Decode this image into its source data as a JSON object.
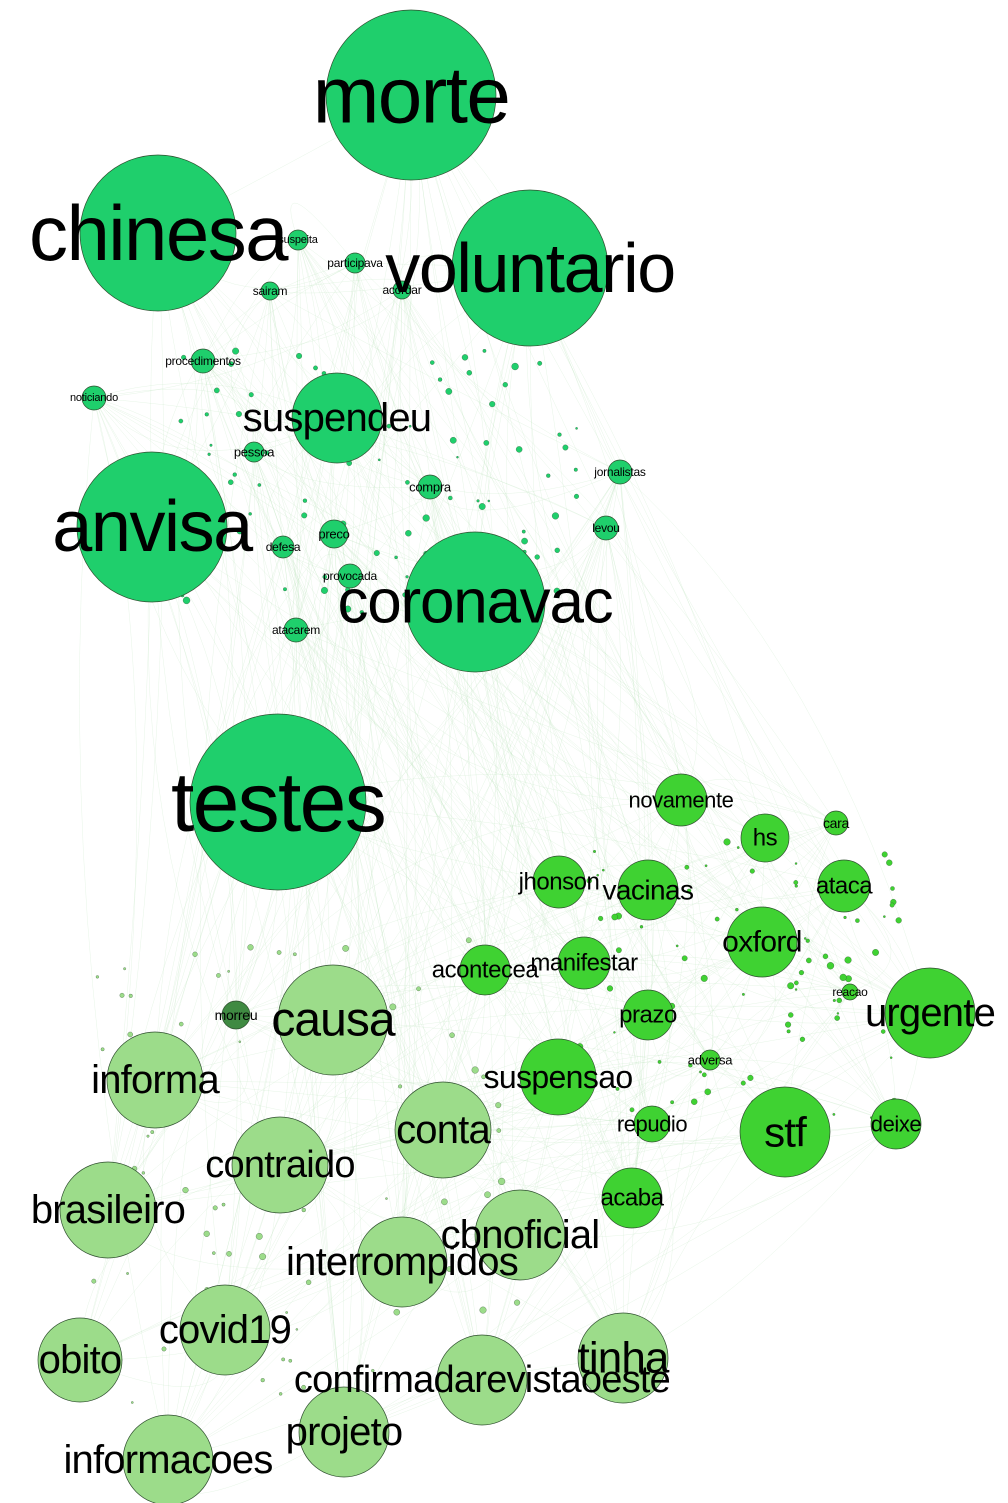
{
  "nodes": [
    {
      "label": "morte"
    },
    {
      "label": "chinesa"
    },
    {
      "label": "voluntario"
    },
    {
      "label": "suspendeu"
    },
    {
      "label": "anvisa"
    },
    {
      "label": "coronavac"
    },
    {
      "label": "testes"
    },
    {
      "label": "causa"
    },
    {
      "label": "informa"
    },
    {
      "label": "conta"
    },
    {
      "label": "contraido"
    },
    {
      "label": "brasileiro"
    },
    {
      "label": "cbnoficial"
    },
    {
      "label": "interrompidos"
    },
    {
      "label": "covid19"
    },
    {
      "label": "obito"
    },
    {
      "label": "tinha"
    },
    {
      "label": "confirmadarevistaoeste"
    },
    {
      "label": "projeto"
    },
    {
      "label": "informacoes"
    },
    {
      "label": "morreu"
    },
    {
      "label": "novamente"
    },
    {
      "label": "hs"
    },
    {
      "label": "cara"
    },
    {
      "label": "jhonson"
    },
    {
      "label": "vacinas"
    },
    {
      "label": "ataca"
    },
    {
      "label": "oxford"
    },
    {
      "label": "acontecea"
    },
    {
      "label": "manifestar"
    },
    {
      "label": "urgente"
    },
    {
      "label": "prazo"
    },
    {
      "label": "suspensao"
    },
    {
      "label": "repudio"
    },
    {
      "label": "stf"
    },
    {
      "label": "deixe"
    },
    {
      "label": "acaba"
    },
    {
      "label": "suspeita"
    },
    {
      "label": "participava"
    },
    {
      "label": "sairam"
    },
    {
      "label": "acordar"
    },
    {
      "label": "procedimentos"
    },
    {
      "label": "noticiando"
    },
    {
      "label": "pessoa"
    },
    {
      "label": "compra"
    },
    {
      "label": "jornalistas"
    },
    {
      "label": "preco"
    },
    {
      "label": "defesa"
    },
    {
      "label": "levou"
    },
    {
      "label": "provocada"
    },
    {
      "label": "atacarem"
    },
    {
      "label": "adversa"
    },
    {
      "label": "reacao"
    }
  ]
}
